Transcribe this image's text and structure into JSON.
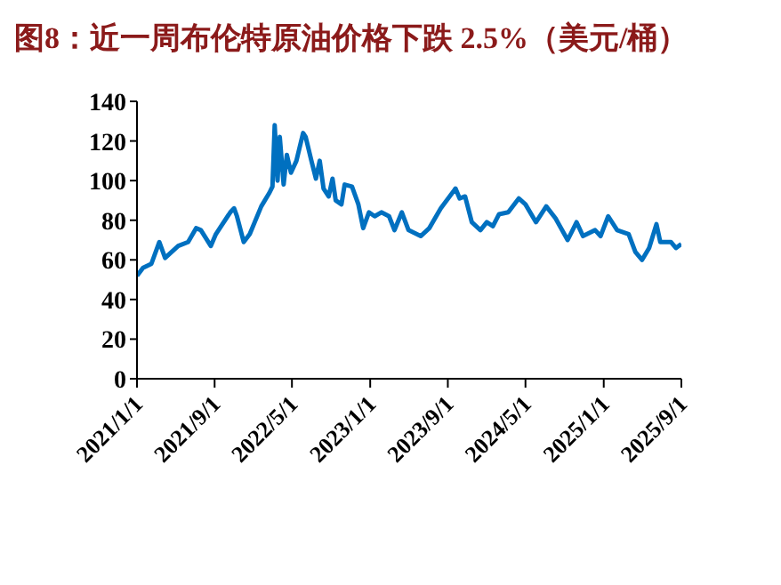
{
  "chart_data": {
    "type": "line",
    "title": "图8：近一周布伦特原油价格下跌 2.5%（美元/桶）",
    "x": [
      "2021-01-01",
      "2021-01-20",
      "2021-02-15",
      "2021-03-12",
      "2021-03-30",
      "2021-05-10",
      "2021-06-10",
      "2021-07-05",
      "2021-07-20",
      "2021-08-20",
      "2021-09-05",
      "2021-10-20",
      "2021-11-01",
      "2021-11-10",
      "2021-12-01",
      "2021-12-20",
      "2022-01-25",
      "2022-02-20",
      "2022-03-01",
      "2022-03-08",
      "2022-03-17",
      "2022-03-24",
      "2022-04-05",
      "2022-04-15",
      "2022-04-28",
      "2022-05-15",
      "2022-06-05",
      "2022-06-13",
      "2022-07-01",
      "2022-07-15",
      "2022-07-27",
      "2022-08-08",
      "2022-08-24",
      "2022-09-05",
      "2022-09-15",
      "2022-10-03",
      "2022-10-13",
      "2022-11-05",
      "2022-11-25",
      "2022-12-10",
      "2022-12-28",
      "2023-01-15",
      "2023-02-05",
      "2023-03-01",
      "2023-03-18",
      "2023-04-10",
      "2023-05-01",
      "2023-06-08",
      "2023-07-05",
      "2023-08-10",
      "2023-09-25",
      "2023-10-08",
      "2023-10-25",
      "2023-11-15",
      "2023-12-12",
      "2024-01-01",
      "2024-01-20",
      "2024-02-08",
      "2024-03-08",
      "2024-04-10",
      "2024-05-01",
      "2024-06-03",
      "2024-07-05",
      "2024-08-03",
      "2024-09-10",
      "2024-10-08",
      "2024-10-28",
      "2024-12-05",
      "2024-12-22",
      "2025-01-15",
      "2025-02-12",
      "2025-03-20",
      "2025-04-10",
      "2025-05-01",
      "2025-05-23",
      "2025-06-15",
      "2025-06-27",
      "2025-07-30",
      "2025-08-15",
      "2025-09-01"
    ],
    "series": [
      {
        "color": "#0070c0",
        "values": [
          52,
          56,
          58,
          69,
          61,
          67,
          69,
          76,
          75,
          67,
          73,
          84,
          86,
          82,
          69,
          73,
          87,
          94,
          97,
          128,
          100,
          122,
          98,
          113,
          104,
          110,
          124,
          122,
          110,
          101,
          110,
          96,
          92,
          101,
          90,
          88,
          98,
          97,
          88,
          76,
          84,
          82,
          84,
          82,
          75,
          84,
          75,
          72,
          76,
          86,
          96,
          91,
          92,
          79,
          75,
          79,
          77,
          83,
          84,
          91,
          88,
          79,
          87,
          81,
          70,
          79,
          72,
          75,
          72,
          82,
          75,
          73,
          64,
          60,
          66,
          78,
          69,
          69,
          66,
          68
        ]
      }
    ],
    "xlim": [
      "2021-01-01",
      "2025-09-01"
    ],
    "xticks": [
      {
        "value": "2021-01-01",
        "label": "2021/1/1"
      },
      {
        "value": "2021-09-01",
        "label": "2021/9/1"
      },
      {
        "value": "2022-05-01",
        "label": "2022/5/1"
      },
      {
        "value": "2023-01-01",
        "label": "2023/1/1"
      },
      {
        "value": "2023-09-01",
        "label": "2023/9/1"
      },
      {
        "value": "2024-05-01",
        "label": "2024/5/1"
      },
      {
        "value": "2025-01-01",
        "label": "2025/1/1"
      },
      {
        "value": "2025-09-01",
        "label": "2025/9/1"
      }
    ],
    "ylim": [
      0,
      140
    ],
    "yticks": [
      0,
      20,
      40,
      60,
      80,
      100,
      120,
      140
    ],
    "grid": false,
    "legend": false,
    "marker": "none",
    "line_style": "solid"
  }
}
